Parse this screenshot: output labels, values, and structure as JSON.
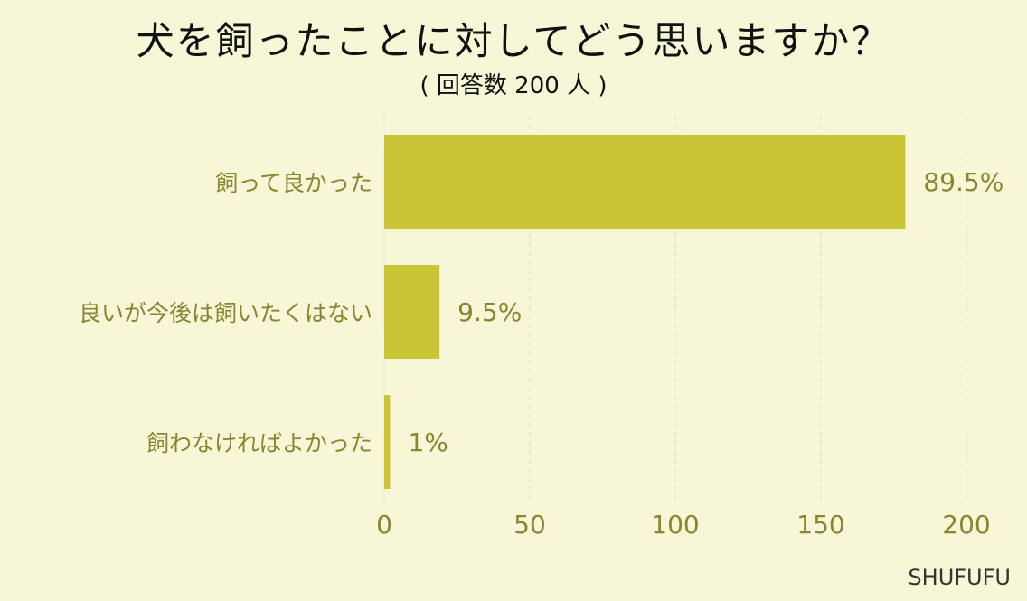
{
  "title": "犬を飼ったことに対してどう思いますか？",
  "subtitle": "( 回答数 200 人 )",
  "brand": "SHUFUFU",
  "colors": {
    "background": "#f7f7d7",
    "bar": "#cac534",
    "label": "#8a8530",
    "grid": "#d9d9c4"
  },
  "chart_data": {
    "type": "bar",
    "orientation": "horizontal",
    "categories": [
      "飼って良かった",
      "良いが今後は飼いたくはない",
      "飼わなければよかった"
    ],
    "values": [
      179,
      19,
      2
    ],
    "data_labels": [
      "89.5%",
      "9.5%",
      "1%"
    ],
    "xlim": [
      0,
      200
    ],
    "xticks": [
      0,
      50,
      100,
      150,
      200
    ],
    "grid": true
  }
}
